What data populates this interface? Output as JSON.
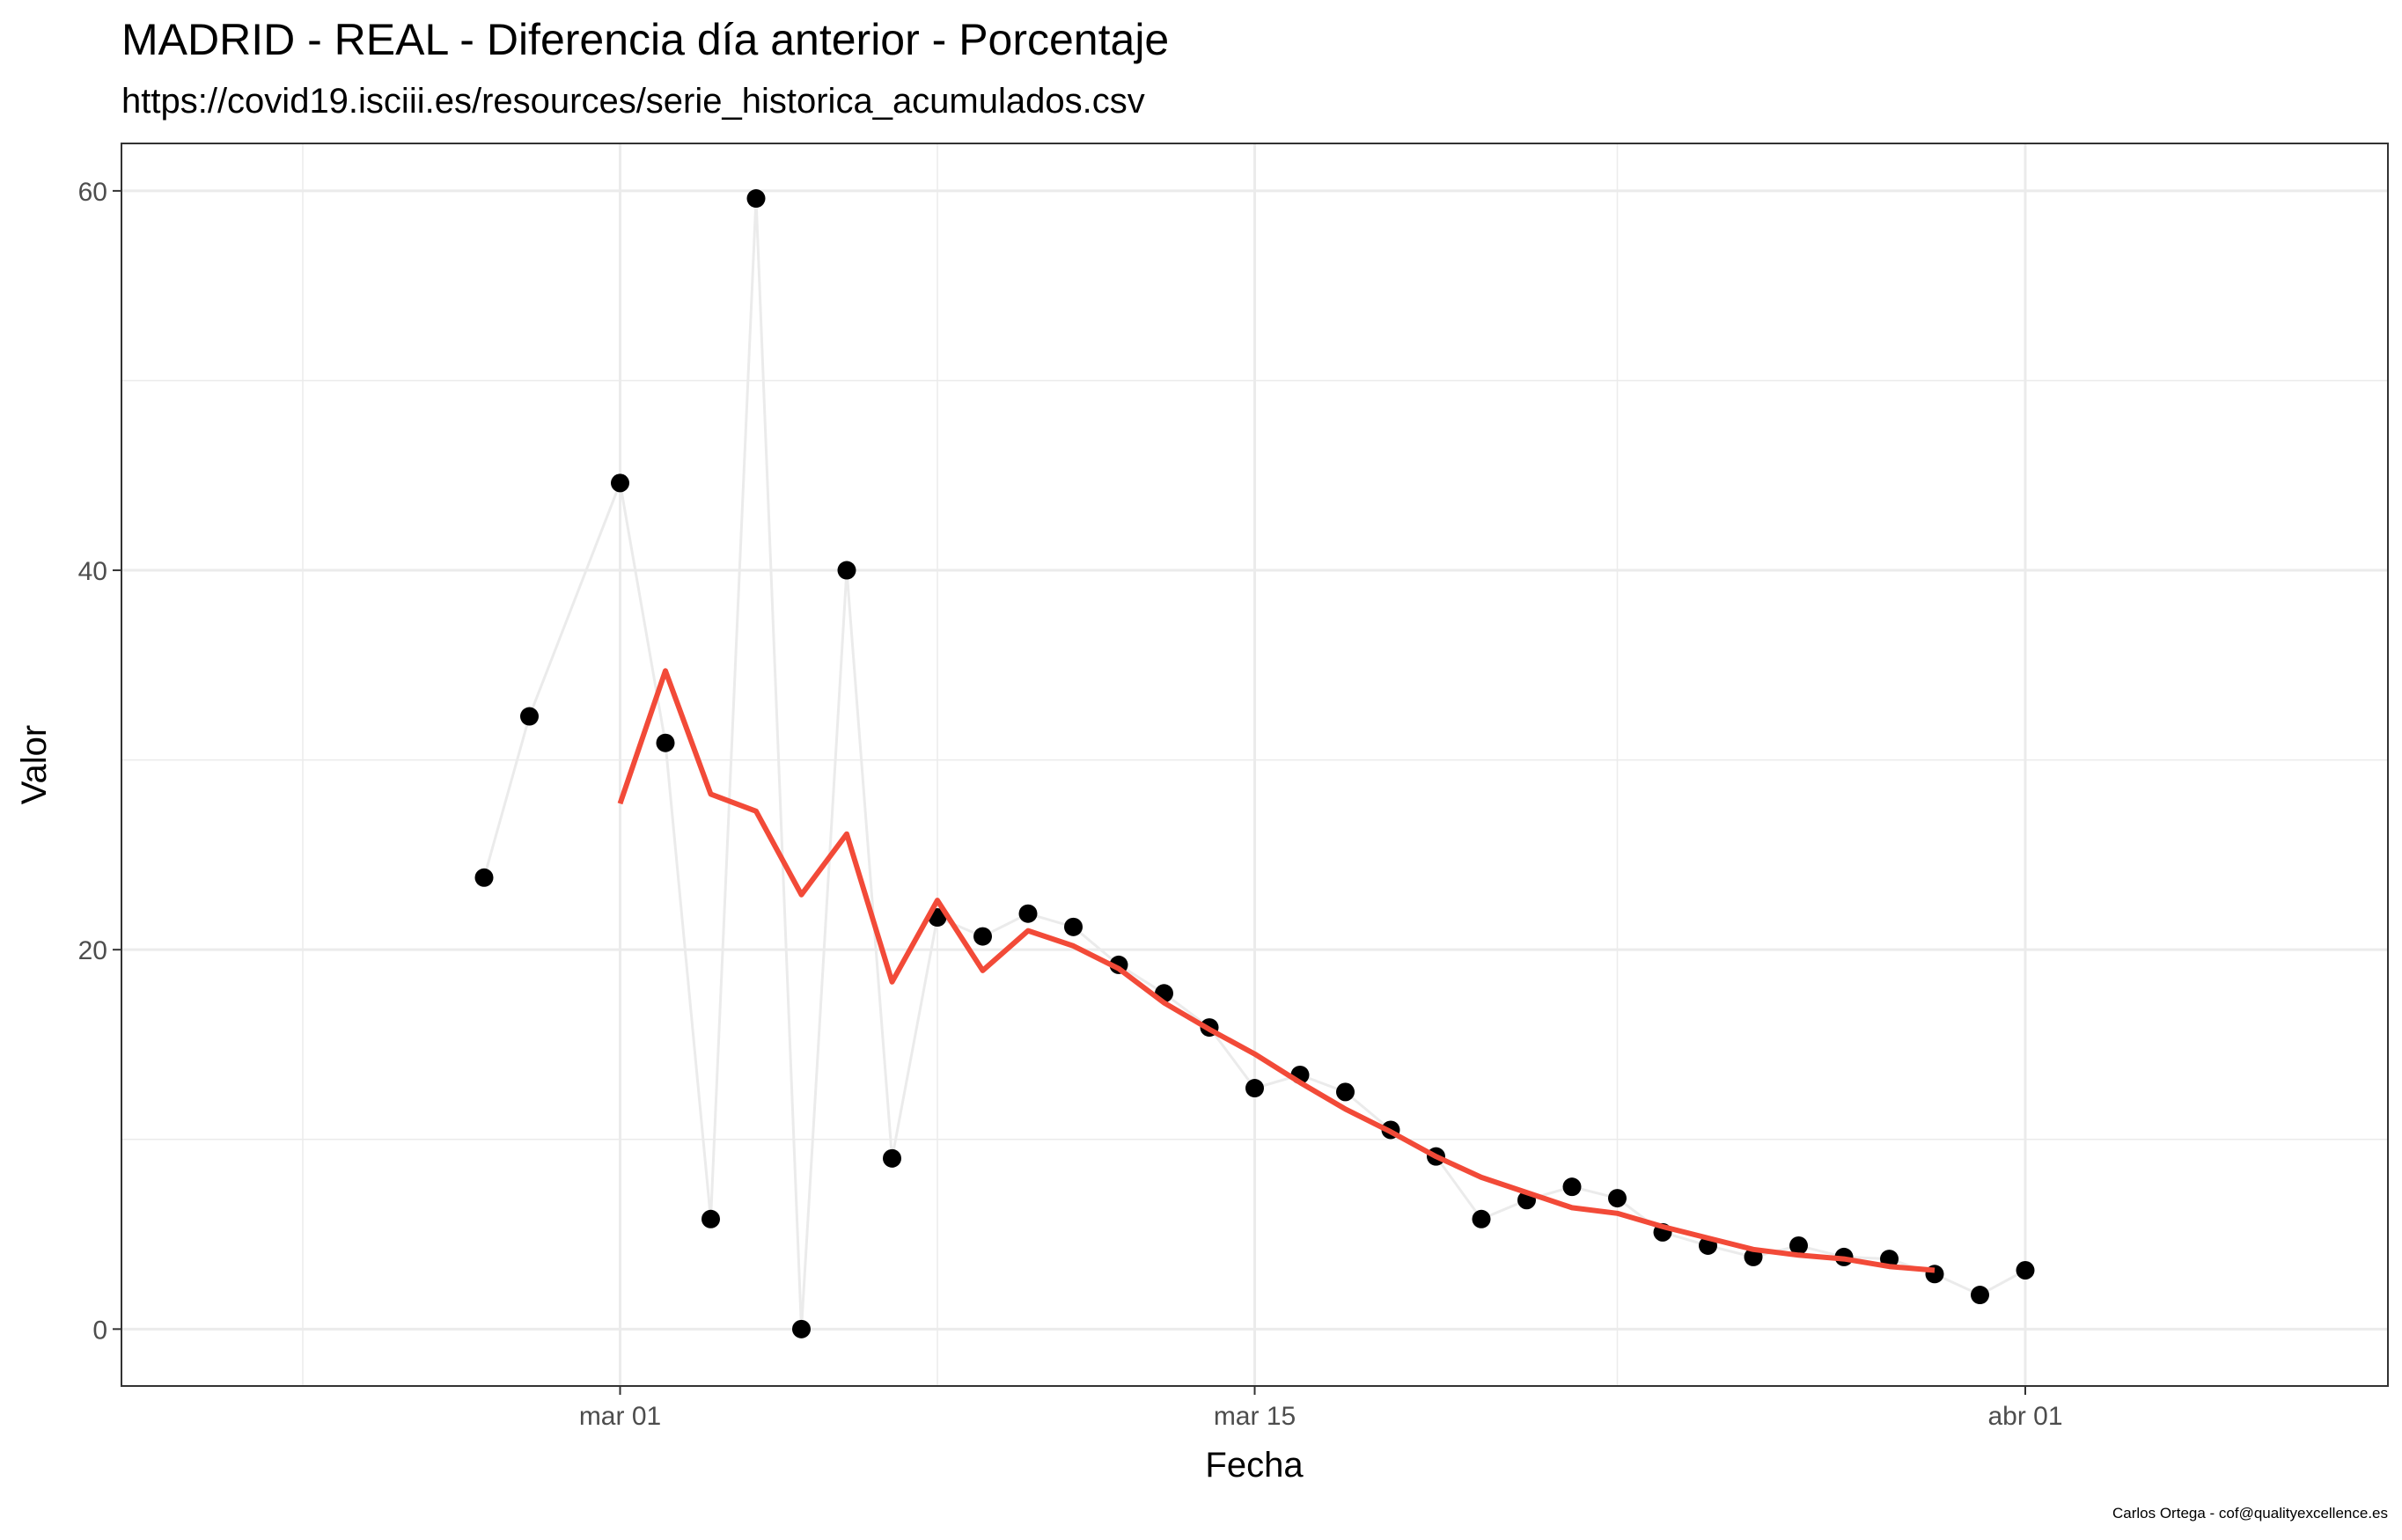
{
  "chart_data": {
    "type": "line",
    "title": "MADRID - REAL - Diferencia día anterior - Porcentaje",
    "subtitle": "https://covid19.isciii.es/resources/serie_historica_acumulados.csv",
    "xlabel": "Fecha",
    "ylabel": "Valor",
    "caption": "Carlos Ortega - cof@qualityexcellence.es",
    "x_range": [
      "2020-02-19",
      "2020-04-09"
    ],
    "ylim": [
      -3.0,
      62.5
    ],
    "y_ticks": [
      0,
      20,
      40,
      60
    ],
    "x_ticks": [
      {
        "date": "2020-03-01",
        "label": "mar 01"
      },
      {
        "date": "2020-03-15",
        "label": "mar 15"
      },
      {
        "date": "2020-04-01",
        "label": "abr 01"
      }
    ],
    "grid": true,
    "colors": {
      "points": "#000000",
      "raw_line": "#ebebeb",
      "smooth_line": "#f24a38",
      "grid": "#ebebeb",
      "panel_border": "#333333"
    },
    "series": [
      {
        "kind": "points",
        "x": [
          "2020-02-27",
          "2020-02-28",
          "2020-03-01",
          "2020-03-02",
          "2020-03-03",
          "2020-03-04",
          "2020-03-05",
          "2020-03-06",
          "2020-03-07",
          "2020-03-08",
          "2020-03-09",
          "2020-03-10",
          "2020-03-11",
          "2020-03-12",
          "2020-03-13",
          "2020-03-14",
          "2020-03-15",
          "2020-03-16",
          "2020-03-17",
          "2020-03-18",
          "2020-03-19",
          "2020-03-20",
          "2020-03-21",
          "2020-03-22",
          "2020-03-23",
          "2020-03-24",
          "2020-03-25",
          "2020-03-26",
          "2020-03-27",
          "2020-03-28",
          "2020-03-29",
          "2020-03-30",
          "2020-03-31",
          "2020-04-01"
        ],
        "y": [
          23.8,
          32.3,
          44.6,
          30.9,
          5.8,
          59.6,
          0.0,
          40.0,
          9.0,
          21.7,
          20.7,
          21.9,
          21.2,
          19.2,
          17.7,
          15.9,
          12.7,
          13.4,
          12.5,
          10.5,
          9.1,
          5.8,
          6.8,
          7.5,
          6.9,
          5.1,
          4.4,
          3.8,
          4.4,
          3.8,
          3.7,
          2.9,
          1.8,
          3.1
        ]
      },
      {
        "kind": "smooth",
        "x": [
          "2020-03-01",
          "2020-03-02",
          "2020-03-03",
          "2020-03-04",
          "2020-03-05",
          "2020-03-06",
          "2020-03-07",
          "2020-03-08",
          "2020-03-09",
          "2020-03-10",
          "2020-03-11",
          "2020-03-12",
          "2020-03-13",
          "2020-03-14",
          "2020-03-15",
          "2020-03-16",
          "2020-03-17",
          "2020-03-18",
          "2020-03-19",
          "2020-03-20",
          "2020-03-21",
          "2020-03-22",
          "2020-03-23",
          "2020-03-24",
          "2020-03-25",
          "2020-03-26",
          "2020-03-27",
          "2020-03-28",
          "2020-03-29",
          "2020-03-30"
        ],
        "y": [
          27.7,
          34.7,
          28.2,
          27.3,
          22.9,
          26.1,
          18.3,
          22.6,
          18.9,
          21.0,
          20.2,
          19.0,
          17.2,
          15.8,
          14.5,
          13.0,
          11.6,
          10.4,
          9.1,
          8.0,
          7.2,
          6.4,
          6.1,
          5.4,
          4.8,
          4.2,
          3.9,
          3.7,
          3.3,
          3.1
        ]
      }
    ]
  }
}
